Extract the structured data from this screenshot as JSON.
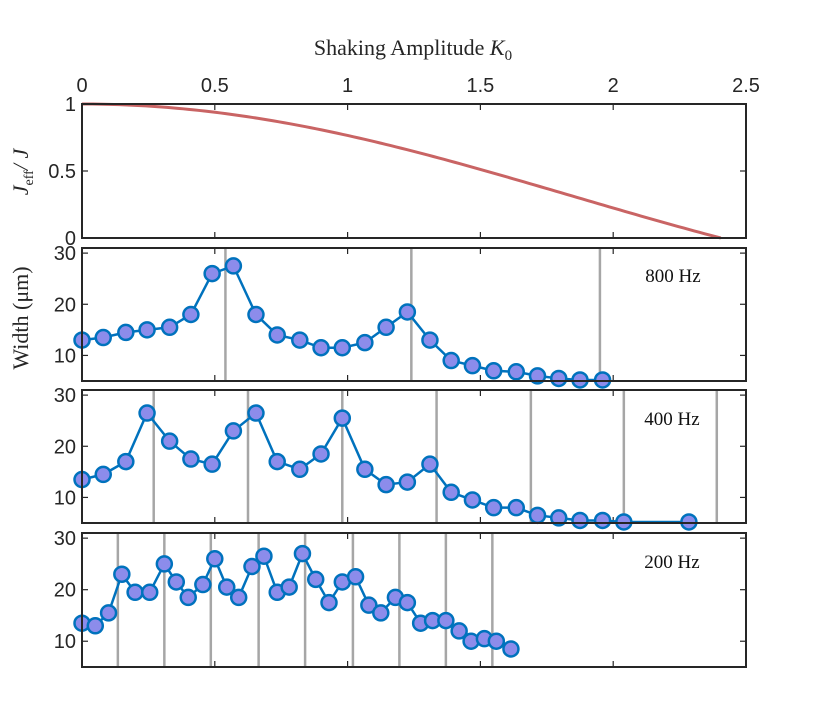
{
  "colors": {
    "curve": "#c96464",
    "series_line": "#0072bd",
    "marker_fill": "#8c8ceb",
    "marker_edge": "#0072bd",
    "vline": "#a6a6a6",
    "axis": "#262626"
  },
  "chart_data": [
    {
      "type": "line",
      "panel": "top",
      "title": "",
      "xlabel": "Shaking Amplitude",
      "xlabel_symbol": "K",
      "xlabel_sub": "0",
      "ylabel_main": "J",
      "ylabel_sub": "eff",
      "ylabel_tail": "/ J",
      "xlim": [
        0,
        2.5
      ],
      "ylim": [
        0,
        1
      ],
      "xticks": [
        "0",
        "0.5",
        "1",
        "1.5",
        "2",
        "2.5"
      ],
      "yticks": [
        "0",
        "0.5",
        "1"
      ],
      "series": [
        {
          "name": "J_eff/J",
          "x": [
            0,
            0.2,
            0.4,
            0.6,
            0.8,
            1.0,
            1.2,
            1.4,
            1.6,
            1.8,
            2.0,
            2.2,
            2.405
          ],
          "values": [
            1.0,
            0.99,
            0.96,
            0.912,
            0.846,
            0.765,
            0.671,
            0.567,
            0.455,
            0.34,
            0.224,
            0.11,
            0.0
          ]
        }
      ]
    },
    {
      "type": "line",
      "panel": "800hz",
      "label": "800 Hz",
      "ylabel": "Width (μm)",
      "xlim": [
        0,
        2.5
      ],
      "ylim": [
        5,
        31
      ],
      "yticks": [
        "10",
        "20",
        "30"
      ],
      "vlines": [
        0.54,
        1.24,
        1.95
      ],
      "series": [
        {
          "name": "800 Hz",
          "x": [
            0,
            0.08,
            0.165,
            0.245,
            0.33,
            0.41,
            0.49,
            0.57,
            0.655,
            0.735,
            0.82,
            0.9,
            0.98,
            1.065,
            1.145,
            1.225,
            1.31,
            1.39,
            1.47,
            1.55,
            1.635,
            1.715,
            1.795,
            1.875,
            1.96
          ],
          "values": [
            13,
            13.5,
            14.5,
            15,
            15.5,
            18,
            26,
            27.5,
            18,
            14,
            13,
            11.5,
            11.5,
            12.5,
            15.5,
            18.5,
            13,
            9,
            8,
            7,
            6.8,
            6,
            5.5,
            5.2,
            5.2
          ]
        }
      ]
    },
    {
      "type": "line",
      "panel": "400hz",
      "label": "400 Hz",
      "xlim": [
        0,
        2.5
      ],
      "ylim": [
        5,
        31
      ],
      "yticks": [
        "10",
        "20",
        "30"
      ],
      "vlines": [
        0.27,
        0.625,
        0.98,
        1.335,
        1.69,
        2.04,
        2.39
      ],
      "series": [
        {
          "name": "400 Hz",
          "x": [
            0,
            0.08,
            0.165,
            0.245,
            0.33,
            0.41,
            0.49,
            0.57,
            0.655,
            0.735,
            0.82,
            0.9,
            0.98,
            1.065,
            1.145,
            1.225,
            1.31,
            1.39,
            1.47,
            1.55,
            1.635,
            1.715,
            1.795,
            1.875,
            1.96,
            2.04,
            2.285
          ],
          "values": [
            13.5,
            14.5,
            17,
            26.5,
            21,
            17.5,
            16.5,
            23,
            26.5,
            17,
            15.5,
            18.5,
            25.5,
            15.5,
            12.5,
            13,
            16.5,
            11,
            9.5,
            8,
            8,
            6.5,
            6,
            5.5,
            5.5,
            5.2,
            5.2
          ]
        }
      ]
    },
    {
      "type": "line",
      "panel": "200hz",
      "label": "200 Hz",
      "xlim": [
        0,
        2.5
      ],
      "ylim": [
        5,
        31
      ],
      "yticks": [
        "10",
        "20",
        "30"
      ],
      "vlines": [
        0.135,
        0.31,
        0.485,
        0.665,
        0.84,
        1.02,
        1.195,
        1.37,
        1.545
      ],
      "series": [
        {
          "name": "200 Hz",
          "x": [
            0,
            0.05,
            0.1,
            0.15,
            0.2,
            0.255,
            0.31,
            0.355,
            0.4,
            0.455,
            0.5,
            0.545,
            0.59,
            0.64,
            0.685,
            0.735,
            0.78,
            0.83,
            0.88,
            0.93,
            0.98,
            1.03,
            1.08,
            1.125,
            1.18,
            1.225,
            1.275,
            1.32,
            1.37,
            1.42,
            1.465,
            1.515,
            1.56,
            1.615
          ],
          "values": [
            13.5,
            13,
            15.5,
            23,
            19.5,
            19.5,
            25,
            21.5,
            18.5,
            21,
            26,
            20.5,
            18.5,
            24.5,
            26.5,
            19.5,
            20.5,
            27,
            22,
            17.5,
            21.5,
            22.5,
            17,
            15.5,
            18.5,
            17.5,
            13.5,
            14,
            14,
            12,
            10,
            10.5,
            10,
            8.5
          ]
        }
      ]
    }
  ]
}
